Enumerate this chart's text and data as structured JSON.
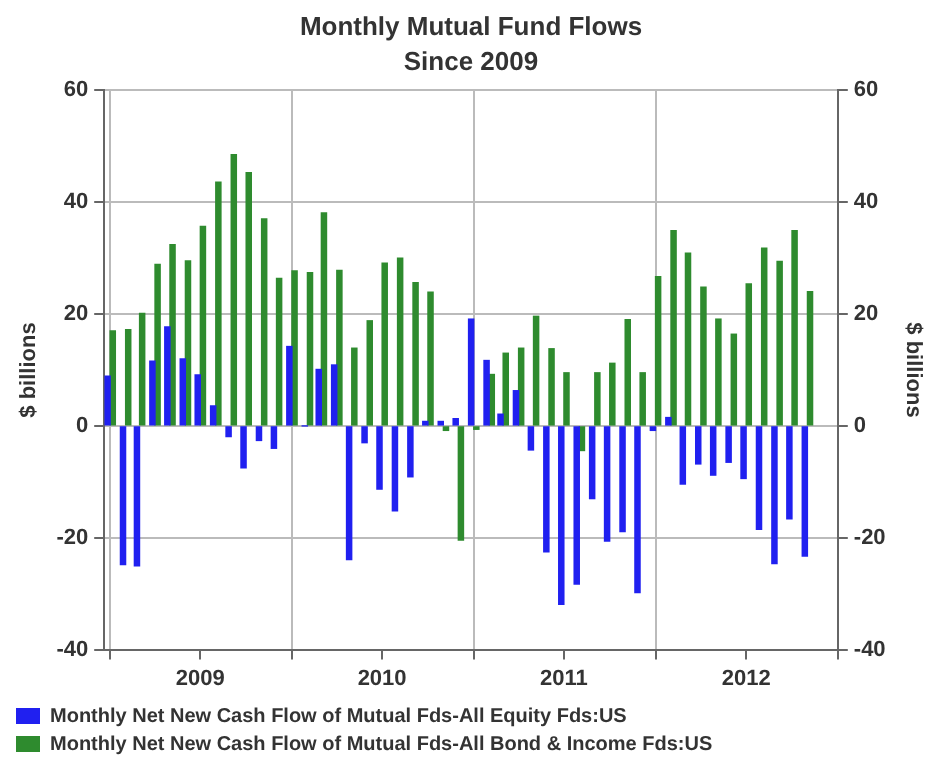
{
  "chart_data": {
    "type": "bar",
    "title": "Monthly Mutual Fund Flows",
    "subtitle": "Since 2009",
    "ylabel": "$ billions",
    "y2label": "$ billions",
    "x": [
      "2009-01",
      "2009-02",
      "2009-03",
      "2009-04",
      "2009-05",
      "2009-06",
      "2009-07",
      "2009-08",
      "2009-09",
      "2009-10",
      "2009-11",
      "2009-12",
      "2010-01",
      "2010-02",
      "2010-03",
      "2010-04",
      "2010-05",
      "2010-06",
      "2010-07",
      "2010-08",
      "2010-09",
      "2010-10",
      "2010-11",
      "2010-12",
      "2011-01",
      "2011-02",
      "2011-03",
      "2011-04",
      "2011-05",
      "2011-06",
      "2011-07",
      "2011-08",
      "2011-09",
      "2011-10",
      "2011-11",
      "2011-12",
      "2012-01",
      "2012-02",
      "2012-03",
      "2012-04",
      "2012-05",
      "2012-06",
      "2012-07",
      "2012-08",
      "2012-09",
      "2012-10",
      "2012-11"
    ],
    "series": [
      {
        "name": "Monthly Net New Cash Flow of Mutual Fds-All Equity Fds:US",
        "color": "#2020f0",
        "values": [
          8.9,
          -24.8,
          -25,
          11.6,
          17.7,
          12,
          9.1,
          3.6,
          -1.9,
          -7.5,
          -2.6,
          -4,
          14.2,
          0,
          10.1,
          10.9,
          -23.9,
          -3,
          -11.3,
          -15.2,
          -9.1,
          0.8,
          0.8,
          1.3,
          19.1,
          11.7,
          2.1,
          6.3,
          -4.3,
          -22.5,
          -31.9,
          -28.3,
          -13,
          -20.6,
          -18.9,
          -29.8,
          -0.8,
          1.5,
          -10.4,
          -6.8,
          -8.8,
          -6.5,
          -9.4,
          -18.5,
          -24.6,
          -16.6,
          -23.3
        ]
      },
      {
        "name": "Monthly Net New Cash Flow of Mutual Fds-All Bond & Income Fds:US",
        "color": "#2e8b2e",
        "values": [
          17,
          17.2,
          20.1,
          28.9,
          32.4,
          29.5,
          35.7,
          43.6,
          48.5,
          45.3,
          37,
          26.4,
          27.7,
          27.4,
          38.1,
          27.8,
          13.9,
          18.8,
          29.1,
          30,
          25.6,
          23.9,
          -0.8,
          -20.4,
          -0.6,
          9.2,
          13,
          13.9,
          19.6,
          13.8,
          9.5,
          -4.4,
          9.5,
          11.2,
          19,
          9.5,
          26.7,
          34.9,
          30.9,
          24.8,
          19.1,
          16.4,
          25.4,
          31.8,
          29.4,
          34.9,
          24
        ]
      }
    ],
    "xlim": [
      "2008-12-20",
      "2013-01-01"
    ],
    "xticks": [
      {
        "value": "2009-01-01",
        "label": null
      },
      {
        "value": "2009-07-01",
        "label": "2009"
      },
      {
        "value": "2010-01-01",
        "label": null
      },
      {
        "value": "2010-07-01",
        "label": "2010"
      },
      {
        "value": "2011-01-01",
        "label": null
      },
      {
        "value": "2011-07-01",
        "label": "2011"
      },
      {
        "value": "2012-01-01",
        "label": null
      },
      {
        "value": "2012-07-01",
        "label": "2012"
      },
      {
        "value": "2013-01-01",
        "label": null
      }
    ],
    "ylim": [
      -40,
      60
    ],
    "yticks": [
      -40,
      -20,
      0,
      20,
      40,
      60
    ],
    "y2lim": [
      -40,
      60
    ],
    "y2ticks": [
      -40,
      -20,
      0,
      20,
      40,
      60
    ],
    "grid": true,
    "legend": "bottom"
  }
}
